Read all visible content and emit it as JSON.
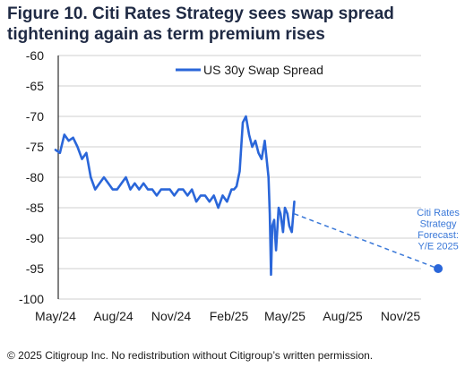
{
  "title": "Figure 10. Citi Rates Strategy sees swap spread tightening again as term premium rises",
  "footer": "© 2025 Citigroup Inc. No redistribution without Citigroup’s written permission.",
  "colors": {
    "series": "#2a66d9",
    "forecast": "#3a78d8",
    "grid": "#cfcfcf",
    "axis": "#000000"
  },
  "chart_data": {
    "type": "line",
    "title": "Figure 10. Citi Rates Strategy sees swap spread tightening again as term premium rises",
    "xlabel": "",
    "ylabel": "",
    "ylim": [
      -100,
      -60
    ],
    "yticks": [
      "-60",
      "-65",
      "-70",
      "-75",
      "-80",
      "-85",
      "-90",
      "-95",
      "-100"
    ],
    "xticks": [
      "May/24",
      "Aug/24",
      "Nov/24",
      "Feb/25",
      "May/25",
      "Aug/25",
      "Nov/25"
    ],
    "grid": "horizontal",
    "legend": "top",
    "series": [
      {
        "name": "US 30y Swap Spread",
        "x": [
          "2024-05-01",
          "2024-05-08",
          "2024-05-15",
          "2024-05-22",
          "2024-05-29",
          "2024-06-05",
          "2024-06-12",
          "2024-06-19",
          "2024-06-26",
          "2024-07-03",
          "2024-07-10",
          "2024-07-17",
          "2024-07-24",
          "2024-07-31",
          "2024-08-07",
          "2024-08-14",
          "2024-08-21",
          "2024-08-28",
          "2024-09-04",
          "2024-09-11",
          "2024-09-18",
          "2024-09-25",
          "2024-10-02",
          "2024-10-09",
          "2024-10-16",
          "2024-10-23",
          "2024-10-30",
          "2024-11-06",
          "2024-11-13",
          "2024-11-20",
          "2024-11-27",
          "2024-12-04",
          "2024-12-11",
          "2024-12-18",
          "2024-12-25",
          "2025-01-01",
          "2025-01-08",
          "2025-01-15",
          "2025-01-22",
          "2025-01-29",
          "2025-02-05",
          "2025-02-09",
          "2025-02-13",
          "2025-02-18",
          "2025-02-23",
          "2025-02-28",
          "2025-03-05",
          "2025-03-10",
          "2025-03-15",
          "2025-03-20",
          "2025-03-25",
          "2025-03-30",
          "2025-04-03",
          "2025-04-05",
          "2025-04-07",
          "2025-04-09",
          "2025-04-11",
          "2025-04-14",
          "2025-04-17",
          "2025-04-21",
          "2025-04-24",
          "2025-04-28",
          "2025-05-01",
          "2025-05-05",
          "2025-05-08",
          "2025-05-12",
          "2025-05-16"
        ],
        "values": [
          -75.5,
          -76,
          -73,
          -74,
          -73.5,
          -75,
          -77,
          -76,
          -80,
          -82,
          -81,
          -80,
          -81,
          -82,
          -82,
          -81,
          -80,
          -82,
          -81,
          -82,
          -81,
          -82,
          -82,
          -83,
          -82,
          -82,
          -82,
          -83,
          -82,
          -82,
          -83,
          -82,
          -84,
          -83,
          -83,
          -84,
          -83,
          -85,
          -83,
          -84,
          -82,
          -82,
          -81.5,
          -79,
          -71,
          -70,
          -73,
          -75,
          -74,
          -76,
          -77,
          -74,
          -78,
          -80,
          -86,
          -96,
          -88,
          -87,
          -92,
          -85,
          -86,
          -89,
          -85,
          -86,
          -88,
          -89,
          -84
        ]
      },
      {
        "name": "Citi Rates Strategy Forecast: Y/E 2025",
        "style": "dashed",
        "x": [
          "2025-05-16",
          "2025-12-31"
        ],
        "values": [
          -86,
          -95
        ]
      }
    ],
    "annotations": [
      {
        "text": [
          "Citi Rates",
          "Strategy",
          "Forecast:",
          "Y/E 2025"
        ],
        "x": "2025-12-31",
        "y": -95
      }
    ]
  }
}
